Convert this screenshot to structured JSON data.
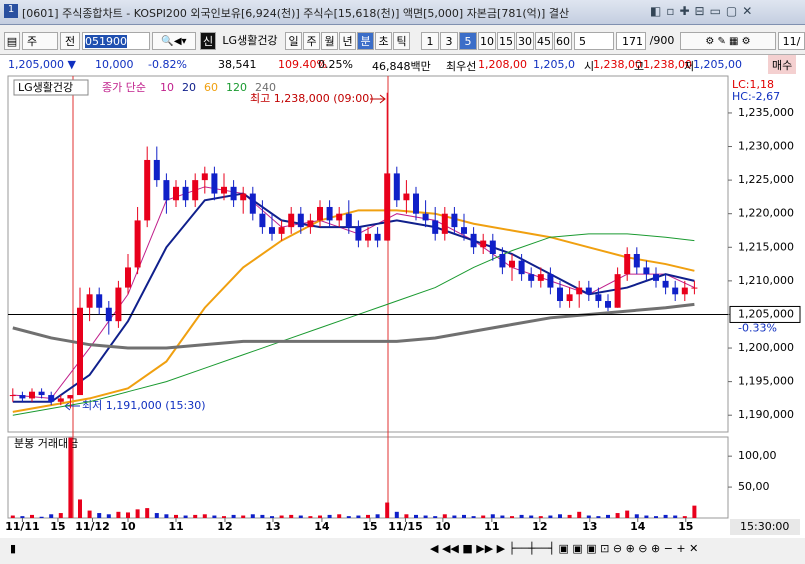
{
  "ui": {
    "title": "[0601] 주식종합차트 - KOSPI200 외국인보유[6,924(천)] 주식수[15,618(천)] 액면[5,000] 자본금[781(억)] 결산",
    "toolbar": {
      "period_type": "주",
      "prev": "전",
      "code": "051900",
      "new_badge": "신",
      "name": "LG생활건강",
      "units": [
        "일",
        "주",
        "월",
        "년",
        "분",
        "초",
        "틱"
      ],
      "intervals": [
        "1",
        "3",
        "5",
        "10",
        "15",
        "30",
        "45",
        "60"
      ],
      "interval_input": "5",
      "count": "171",
      "total": "/900",
      "date": "11/"
    },
    "info": [
      "1,205,000 ▼",
      "10,000",
      "-0.82%",
      "38,541",
      "109.40%",
      "0.25%",
      "46,848백만",
      "최우선",
      "1,208,00",
      "1,205,0",
      "시",
      "1,238,00",
      "고",
      "1,238,00",
      "저",
      "1,205,00",
      "매수"
    ]
  },
  "chart_data": {
    "type": "candlestick",
    "title": "LG생활건강",
    "indicator_label": "종가 단순",
    "up_color": "#e8001c",
    "down_color": "#1020c8",
    "open": [
      1193000,
      1193000,
      1192500,
      1193500,
      1193000,
      1192000,
      1192500,
      1193000,
      1206000,
      1208000,
      1206000,
      1204000,
      1209000,
      1212000,
      1219000,
      1228000,
      1225000,
      1222000,
      1224000,
      1222000,
      1225000,
      1226000,
      1223000,
      1224000,
      1222000,
      1223000,
      1220000,
      1218000,
      1217000,
      1218000,
      1220000,
      1218000,
      1219000,
      1221000,
      1219000,
      1220000,
      1218000,
      1216000,
      1217000,
      1216000,
      1226000,
      1222000,
      1223000,
      1220000,
      1219000,
      1217000,
      1220000,
      1218000,
      1217000,
      1215000,
      1216000,
      1214000,
      1212000,
      1213000,
      1211000,
      1210000,
      1211000,
      1209000,
      1207000,
      1208000,
      1209000,
      1208000,
      1207000,
      1206000,
      1211000,
      1214000,
      1212000,
      1211000,
      1210000,
      1209000,
      1208000,
      1209000
    ],
    "high": [
      1194000,
      1193500,
      1194000,
      1194000,
      1193500,
      1193000,
      1193000,
      1209000,
      1209000,
      1209000,
      1207000,
      1210000,
      1214000,
      1221000,
      1230000,
      1230000,
      1226000,
      1225000,
      1225000,
      1226000,
      1227000,
      1227000,
      1226000,
      1225000,
      1224000,
      1224000,
      1222000,
      1220000,
      1219000,
      1221000,
      1221000,
      1220000,
      1222000,
      1222000,
      1221000,
      1222000,
      1219000,
      1218000,
      1218000,
      1238000,
      1227000,
      1225000,
      1224000,
      1222000,
      1221000,
      1221000,
      1221000,
      1220000,
      1218000,
      1217000,
      1217000,
      1215000,
      1214000,
      1214000,
      1212000,
      1212000,
      1212000,
      1210000,
      1209000,
      1210000,
      1210000,
      1209000,
      1208000,
      1212000,
      1215000,
      1215000,
      1213000,
      1212000,
      1211000,
      1210000,
      1210000,
      1210000
    ],
    "low": [
      1192000,
      1192000,
      1192000,
      1192500,
      1191500,
      1191500,
      1191000,
      1193000,
      1204000,
      1205000,
      1202000,
      1203000,
      1208000,
      1211000,
      1218000,
      1224000,
      1220000,
      1221000,
      1221000,
      1221000,
      1223000,
      1222000,
      1222000,
      1221000,
      1220000,
      1219000,
      1217000,
      1216000,
      1216000,
      1217000,
      1217000,
      1217000,
      1218000,
      1218000,
      1218000,
      1217000,
      1215000,
      1215000,
      1215000,
      1216000,
      1221000,
      1220000,
      1219000,
      1218000,
      1216000,
      1216000,
      1217000,
      1216000,
      1214000,
      1214000,
      1213000,
      1211000,
      1210000,
      1210000,
      1209000,
      1209000,
      1208000,
      1206000,
      1206000,
      1206000,
      1207000,
      1206000,
      1205500,
      1206000,
      1210000,
      1211000,
      1210000,
      1209000,
      1208000,
      1207000,
      1207000,
      1208000
    ],
    "close": [
      1193000,
      1192500,
      1193500,
      1193000,
      1192000,
      1192500,
      1193000,
      1206000,
      1208000,
      1206000,
      1204000,
      1209000,
      1212000,
      1219000,
      1228000,
      1225000,
      1222000,
      1224000,
      1222000,
      1225000,
      1226000,
      1223000,
      1224000,
      1222000,
      1223000,
      1220000,
      1218000,
      1217000,
      1218000,
      1220000,
      1218000,
      1219000,
      1221000,
      1219000,
      1220000,
      1218000,
      1216000,
      1217000,
      1216000,
      1226000,
      1222000,
      1223000,
      1220000,
      1219000,
      1217000,
      1220000,
      1218000,
      1217000,
      1215000,
      1216000,
      1214000,
      1212000,
      1213000,
      1211000,
      1210000,
      1211000,
      1209000,
      1207000,
      1208000,
      1209000,
      1208000,
      1207000,
      1206000,
      1211000,
      1214000,
      1212000,
      1211000,
      1210000,
      1209000,
      1208000,
      1209000,
      1209000
    ],
    "ma_x": [
      0,
      4,
      8,
      12,
      16,
      20,
      24,
      28,
      32,
      36,
      40,
      44,
      48,
      52,
      56,
      60,
      64,
      68,
      71
    ],
    "series": [
      {
        "name": "10",
        "color": "#c0208c",
        "width": 1,
        "values": [
          1193000,
          1192500,
          1200000,
          1208000,
          1222000,
          1224000,
          1223000,
          1218000,
          1219000,
          1217000,
          1220000,
          1219000,
          1216000,
          1212000,
          1210000,
          1208000,
          1211000,
          1211000,
          1209000
        ]
      },
      {
        "name": "20",
        "color": "#10208c",
        "width": 2,
        "values": [
          1192000,
          1192000,
          1196000,
          1204000,
          1215000,
          1222000,
          1223000,
          1219000,
          1218000,
          1218000,
          1219000,
          1218000,
          1216000,
          1214000,
          1211000,
          1208000,
          1209000,
          1211000,
          1210000
        ]
      },
      {
        "name": "60",
        "color": "#f0a010",
        "width": 2,
        "values": [
          1190500,
          1191500,
          1192500,
          1194000,
          1198000,
          1206000,
          1212000,
          1216000,
          1219000,
          1220500,
          1220500,
          1220000,
          1218500,
          1217500,
          1216500,
          1215000,
          1213500,
          1212500,
          1211500
        ]
      },
      {
        "name": "120",
        "color": "#1a9a30",
        "width": 1,
        "values": [
          1190000,
          1191000,
          1192000,
          1193500,
          1195000,
          1197000,
          1199000,
          1201000,
          1203000,
          1205000,
          1207000,
          1209000,
          1212000,
          1214500,
          1216500,
          1217000,
          1217000,
          1216500,
          1216000
        ]
      },
      {
        "name": "240",
        "color": "#707070",
        "width": 3,
        "values": [
          1203000,
          1201500,
          1200500,
          1200000,
          1200000,
          1200500,
          1201000,
          1201000,
          1201000,
          1201000,
          1201000,
          1201500,
          1202500,
          1203500,
          1204500,
          1205000,
          1205500,
          1206000,
          1206500
        ]
      }
    ],
    "xlim": [
      -0.5,
      74.5
    ],
    "xticks": [
      {
        "value": 1.0,
        "label": "11/11"
      },
      {
        "value": 4.7,
        "label": "15"
      },
      {
        "value": 8.3,
        "label": "11/12"
      },
      {
        "value": 12.0,
        "label": "10"
      },
      {
        "value": 17.0,
        "label": "11"
      },
      {
        "value": 22.1,
        "label": "12"
      },
      {
        "value": 27.1,
        "label": "13"
      },
      {
        "value": 32.2,
        "label": "14"
      },
      {
        "value": 37.2,
        "label": "15"
      },
      {
        "value": 40.9,
        "label": "11/15"
      },
      {
        "value": 44.8,
        "label": "10"
      },
      {
        "value": 49.9,
        "label": "11"
      },
      {
        "value": 54.9,
        "label": "12"
      },
      {
        "value": 60.1,
        "label": "13"
      },
      {
        "value": 65.1,
        "label": "14"
      },
      {
        "value": 70.1,
        "label": "15"
      }
    ],
    "time_label": "15:30:00",
    "ylim": [
      1187500,
      1240500
    ],
    "yticks": [
      {
        "value": 1190000,
        "label": "1,190,000"
      },
      {
        "value": 1195000,
        "label": "1,195,000"
      },
      {
        "value": 1200000,
        "label": "1,200,000"
      },
      {
        "value": 1205000,
        "label": "1,205,000"
      },
      {
        "value": 1210000,
        "label": "1,210,000"
      },
      {
        "value": 1215000,
        "label": "1,215,000"
      },
      {
        "value": 1220000,
        "label": "1,220,000"
      },
      {
        "value": 1225000,
        "label": "1,225,000"
      },
      {
        "value": 1230000,
        "label": "1,230,000"
      },
      {
        "value": 1235000,
        "label": "1,235,000"
      }
    ],
    "current_price": {
      "value": 1205000,
      "label": "1,205,000"
    },
    "current_change": "-0.33%",
    "lc": "LC:1,18",
    "hc": "HC:-2,67",
    "high_annotation": "최고 1,238,000 (09:00)",
    "low_annotation": "최저 1,191,000 (15:30)",
    "volume": {
      "title": "분봉 거래대금",
      "ylim": [
        0,
        131
      ],
      "yticks": [
        {
          "value": 100,
          "label": "100,00"
        },
        {
          "value": 50,
          "label": "50,00"
        }
      ],
      "values": [
        4,
        3,
        5,
        2,
        6,
        8,
        130,
        30,
        12,
        8,
        6,
        10,
        9,
        14,
        16,
        8,
        6,
        5,
        4,
        5,
        6,
        4,
        3,
        5,
        4,
        6,
        5,
        3,
        4,
        5,
        4,
        3,
        4,
        5,
        6,
        3,
        4,
        5,
        6,
        25,
        10,
        6,
        5,
        4,
        3,
        6,
        4,
        5,
        3,
        4,
        6,
        4,
        3,
        5,
        4,
        3,
        4,
        6,
        5,
        10,
        4,
        3,
        5,
        8,
        12,
        6,
        4,
        3,
        5,
        4,
        3,
        20
      ]
    }
  }
}
